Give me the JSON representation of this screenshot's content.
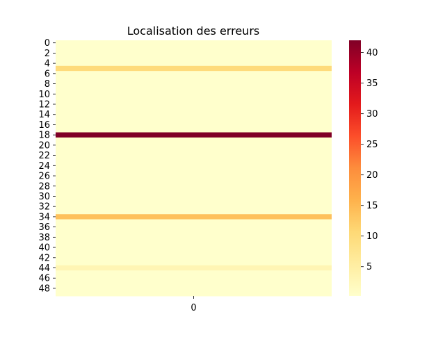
{
  "chart_data": {
    "type": "heatmap",
    "title": "Localisation des erreurs",
    "xlabel": "",
    "ylabel": "",
    "colormap": "YlOrRd",
    "x_categories": [
      "0"
    ],
    "y_categories": [
      "0",
      "1",
      "2",
      "3",
      "4",
      "5",
      "6",
      "7",
      "8",
      "9",
      "10",
      "11",
      "12",
      "13",
      "14",
      "15",
      "16",
      "17",
      "18",
      "19",
      "20",
      "21",
      "22",
      "23",
      "24",
      "25",
      "26",
      "27",
      "28",
      "29",
      "30",
      "31",
      "32",
      "33",
      "34",
      "35",
      "36",
      "37",
      "38",
      "39",
      "40",
      "41",
      "42",
      "43",
      "44",
      "45",
      "46",
      "47",
      "48",
      "49"
    ],
    "y_tick_labels": [
      "0",
      "2",
      "4",
      "6",
      "8",
      "10",
      "12",
      "14",
      "16",
      "18",
      "20",
      "22",
      "24",
      "26",
      "28",
      "30",
      "32",
      "34",
      "36",
      "38",
      "40",
      "42",
      "44",
      "46",
      "48"
    ],
    "values": [
      0,
      0,
      0,
      0,
      0,
      10,
      0,
      0,
      0,
      0,
      0,
      0,
      0,
      0,
      0,
      0,
      0,
      0,
      42,
      0,
      0,
      0,
      0,
      0,
      0,
      0,
      0,
      0,
      0,
      0,
      0,
      0,
      0,
      0,
      14,
      0,
      0,
      0,
      0,
      0,
      0,
      0,
      0,
      0,
      3,
      0,
      0,
      0,
      0,
      0
    ],
    "colorbar": {
      "min": 0.2,
      "max": 42,
      "ticks": [
        "5",
        "10",
        "15",
        "20",
        "25",
        "30",
        "35",
        "40"
      ],
      "tick_values": [
        5,
        10,
        15,
        20,
        25,
        30,
        35,
        40
      ]
    },
    "grid": false,
    "legend": "colorbar-right"
  }
}
